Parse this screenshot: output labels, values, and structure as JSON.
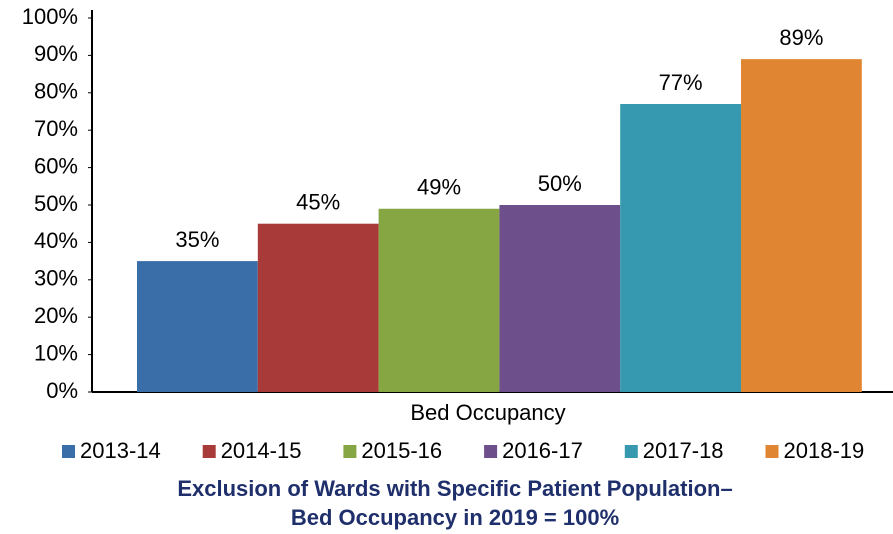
{
  "chart_data": {
    "type": "bar",
    "title": [
      "Exclusion of Wards with Specific Patient Population–",
      "Bed Occupancy in 2019 = 100%"
    ],
    "categories": [
      "Bed Occupancy"
    ],
    "series": [
      {
        "name": "2013-14",
        "color": "#3a6ea8",
        "values": [
          35
        ],
        "value_labels": [
          "35%"
        ]
      },
      {
        "name": "2014-15",
        "color": "#a83b3a",
        "values": [
          45
        ],
        "value_labels": [
          "45%"
        ]
      },
      {
        "name": "2015-16",
        "color": "#86a543",
        "values": [
          49
        ],
        "value_labels": [
          "49%"
        ]
      },
      {
        "name": "2016-17",
        "color": "#6d4f8c",
        "values": [
          50
        ],
        "value_labels": [
          "50%"
        ]
      },
      {
        "name": "2017-18",
        "color": "#3799b0",
        "values": [
          77
        ],
        "value_labels": [
          "77%"
        ]
      },
      {
        "name": "2018-19",
        "color": "#e08632",
        "values": [
          89
        ],
        "value_labels": [
          "89%"
        ]
      }
    ],
    "ylim": [
      0,
      100
    ],
    "yticks": [
      {
        "value": 0,
        "label": "0%"
      },
      {
        "value": 10,
        "label": "10%"
      },
      {
        "value": 20,
        "label": "20%"
      },
      {
        "value": 30,
        "label": "30%"
      },
      {
        "value": 40,
        "label": "40%"
      },
      {
        "value": 50,
        "label": "50%"
      },
      {
        "value": 60,
        "label": "60%"
      },
      {
        "value": 70,
        "label": "70%"
      },
      {
        "value": 80,
        "label": "80%"
      },
      {
        "value": 90,
        "label": "90%"
      },
      {
        "value": 100,
        "label": "100%"
      }
    ],
    "legend": "bottom"
  }
}
